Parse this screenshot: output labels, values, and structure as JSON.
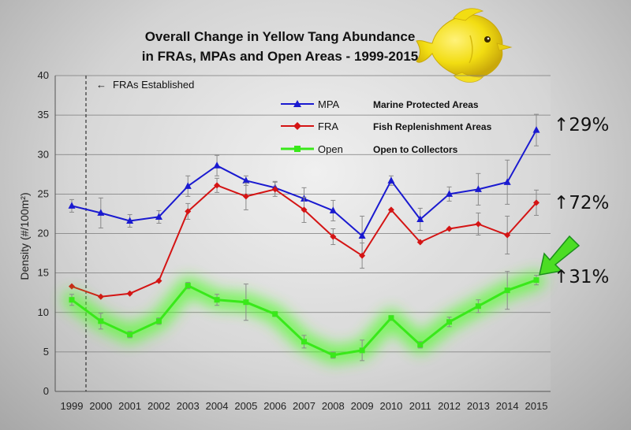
{
  "chart_data": {
    "type": "line",
    "title_lines": [
      "Overall Change in Yellow Tang Abundance",
      "in FRAs, MPAs and Open Areas - 1999-2015"
    ],
    "xlabel": "",
    "ylabel": "Density (#/100m²)",
    "ylim": [
      0,
      40
    ],
    "yticks": [
      0,
      5,
      10,
      15,
      20,
      25,
      30,
      35,
      40
    ],
    "categories": [
      "1999",
      "2000",
      "2001",
      "2002",
      "2003",
      "2004",
      "2005",
      "2006",
      "2007",
      "2008",
      "2009",
      "2010",
      "2011",
      "2012",
      "2013",
      "2014",
      "2015"
    ],
    "grid": true,
    "legend_position": "top-center",
    "annotation": "FRAs Established",
    "series": [
      {
        "name": "MPA",
        "description": "Marine Protected Areas",
        "color": "#1a1ad0",
        "marker": "triangle",
        "values": [
          23.5,
          22.6,
          21.6,
          22.1,
          26.0,
          28.6,
          26.7,
          25.8,
          24.4,
          22.9,
          19.7,
          26.7,
          21.8,
          25.0,
          25.6,
          26.5,
          33.1
        ],
        "error": [
          0.8,
          1.9,
          0.8,
          0.8,
          1.3,
          1.3,
          0.6,
          0.8,
          1.4,
          1.3,
          2.5,
          0.6,
          1.4,
          0.9,
          2.0,
          2.8,
          2.0
        ]
      },
      {
        "name": "FRA",
        "description": "Fish Replenishment Areas",
        "color": "#d41414",
        "marker": "diamond",
        "values": [
          13.3,
          12.0,
          12.4,
          14.0,
          22.8,
          26.1,
          24.7,
          25.6,
          23.0,
          19.6,
          17.2,
          23.0,
          18.9,
          20.6,
          21.2,
          19.8,
          23.9
        ],
        "error": [
          0.0,
          0.0,
          0.0,
          0.0,
          1.0,
          0.9,
          1.7,
          0.9,
          1.6,
          1.0,
          1.6,
          0.0,
          0.0,
          0.0,
          1.4,
          2.4,
          1.6
        ]
      },
      {
        "name": "Open",
        "description": "Open to Collectors",
        "color": "#39e81a",
        "marker": "square",
        "values": [
          11.6,
          8.9,
          7.2,
          8.9,
          13.4,
          11.6,
          11.3,
          9.8,
          6.3,
          4.6,
          5.2,
          9.3,
          5.9,
          8.8,
          10.8,
          12.8,
          14.1
        ],
        "error": [
          0.7,
          1.0,
          0.4,
          0.4,
          0.4,
          0.7,
          2.3,
          0.3,
          0.8,
          0.4,
          1.3,
          0.3,
          0.4,
          0.6,
          0.8,
          2.4,
          0.6
        ]
      }
    ],
    "percent_changes": [
      {
        "series": "MPA",
        "label": "↑29%"
      },
      {
        "series": "FRA",
        "label": "↑72%"
      },
      {
        "series": "Open",
        "label": "↑31%"
      }
    ]
  },
  "colors": {
    "arrow_fill": "#4cdd24",
    "arrow_stroke": "#1b8f1b",
    "fish_body": "#f2dd12",
    "fish_shade": "#c9a80a"
  },
  "icons": {
    "fish": "yellow-tang-fish-icon",
    "pointer": "green-arrow-icon"
  }
}
